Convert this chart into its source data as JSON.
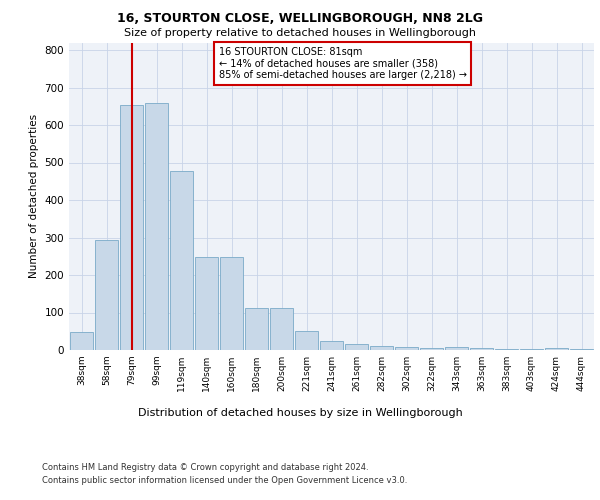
{
  "title1": "16, STOURTON CLOSE, WELLINGBOROUGH, NN8 2LG",
  "title2": "Size of property relative to detached houses in Wellingborough",
  "xlabel": "Distribution of detached houses by size in Wellingborough",
  "ylabel": "Number of detached properties",
  "categories": [
    "38sqm",
    "58sqm",
    "79sqm",
    "99sqm",
    "119sqm",
    "140sqm",
    "160sqm",
    "180sqm",
    "200sqm",
    "221sqm",
    "241sqm",
    "261sqm",
    "282sqm",
    "302sqm",
    "322sqm",
    "343sqm",
    "363sqm",
    "383sqm",
    "403sqm",
    "424sqm",
    "444sqm"
  ],
  "values": [
    47,
    293,
    653,
    660,
    477,
    248,
    248,
    112,
    112,
    52,
    25,
    15,
    12,
    8,
    5,
    7,
    5,
    3,
    2,
    5,
    2
  ],
  "bar_color": "#c8d8e8",
  "bar_edgecolor": "#7aaac8",
  "vline_index": 2,
  "annotation_title": "16 STOURTON CLOSE: 81sqm",
  "annotation_line1": "← 14% of detached houses are smaller (358)",
  "annotation_line2": "85% of semi-detached houses are larger (2,218) →",
  "vline_color": "#cc0000",
  "annotation_box_edgecolor": "#cc0000",
  "footer1": "Contains HM Land Registry data © Crown copyright and database right 2024.",
  "footer2": "Contains public sector information licensed under the Open Government Licence v3.0.",
  "ylim": [
    0,
    820
  ],
  "bg_color": "#eef2f8",
  "grid_color": "#c8d4e8"
}
